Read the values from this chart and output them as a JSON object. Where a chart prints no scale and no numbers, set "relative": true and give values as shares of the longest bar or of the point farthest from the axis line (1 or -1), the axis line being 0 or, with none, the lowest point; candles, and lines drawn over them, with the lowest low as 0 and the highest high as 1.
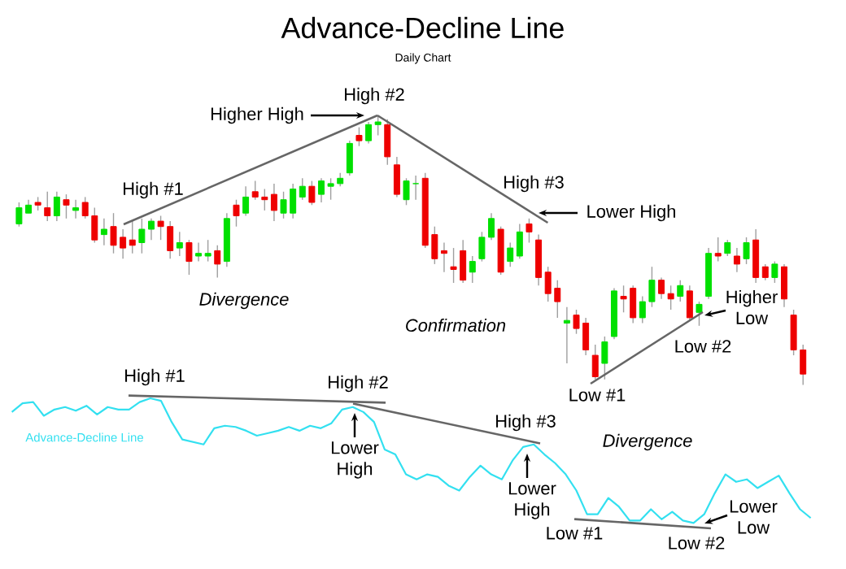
{
  "chart_data": [
    {
      "type": "candlestick",
      "title": "Advance-Decline Line",
      "subtitle": "Daily Chart",
      "relative": true,
      "categories": [
        null,
        null,
        null,
        null,
        null,
        null,
        null,
        null,
        null,
        null,
        null,
        null,
        null,
        null,
        null,
        null,
        null,
        null,
        null,
        null,
        null,
        null,
        null,
        null,
        null,
        null,
        null,
        null,
        null,
        null,
        null,
        null,
        null,
        null,
        null,
        null,
        null,
        null,
        null,
        null,
        null,
        null,
        null,
        null,
        null,
        null,
        null,
        null,
        null,
        null,
        null,
        null,
        null,
        null,
        null,
        null,
        null,
        null,
        null,
        null,
        null,
        null,
        null,
        null,
        null,
        null,
        null,
        null,
        null,
        null,
        null,
        null,
        null,
        null,
        null,
        null,
        null,
        null,
        null,
        null,
        null,
        null,
        null,
        null
      ],
      "ohlc": [
        [
          0.6,
          0.68,
          0.59,
          0.66
        ],
        [
          0.64,
          0.69,
          0.64,
          0.67
        ],
        [
          0.68,
          0.7,
          0.65,
          0.67
        ],
        [
          0.66,
          0.72,
          0.61,
          0.63
        ],
        [
          0.63,
          0.72,
          0.61,
          0.7
        ],
        [
          0.69,
          0.71,
          0.62,
          0.67
        ],
        [
          0.65,
          0.69,
          0.62,
          0.66
        ],
        [
          0.68,
          0.7,
          0.62,
          0.63
        ],
        [
          0.63,
          0.66,
          0.53,
          0.54
        ],
        [
          0.56,
          0.62,
          0.52,
          0.58
        ],
        [
          0.59,
          0.64,
          0.49,
          0.52
        ],
        [
          0.55,
          0.58,
          0.47,
          0.51
        ],
        [
          0.54,
          0.61,
          0.49,
          0.52
        ],
        [
          0.53,
          0.62,
          0.49,
          0.58
        ],
        [
          0.58,
          0.62,
          0.54,
          0.61
        ],
        [
          0.61,
          0.63,
          0.54,
          0.59
        ],
        [
          0.59,
          0.61,
          0.47,
          0.5
        ],
        [
          0.51,
          0.57,
          0.48,
          0.53
        ],
        [
          0.53,
          0.54,
          0.41,
          0.46
        ],
        [
          0.48,
          0.53,
          0.46,
          0.49
        ],
        [
          0.48,
          0.54,
          0.46,
          0.49
        ],
        [
          0.5,
          0.52,
          0.4,
          0.45
        ],
        [
          0.46,
          0.64,
          0.44,
          0.62
        ],
        [
          0.67,
          0.69,
          0.59,
          0.63
        ],
        [
          0.64,
          0.74,
          0.63,
          0.7
        ],
        [
          0.72,
          0.76,
          0.69,
          0.7
        ],
        [
          0.7,
          0.73,
          0.65,
          0.69
        ],
        [
          0.71,
          0.75,
          0.61,
          0.65
        ],
        [
          0.64,
          0.72,
          0.62,
          0.69
        ],
        [
          0.64,
          0.75,
          0.62,
          0.73
        ],
        [
          0.7,
          0.77,
          0.69,
          0.74
        ],
        [
          0.74,
          0.76,
          0.67,
          0.68
        ],
        [
          0.71,
          0.77,
          0.68,
          0.76
        ],
        [
          0.74,
          0.77,
          0.69,
          0.75
        ],
        [
          0.75,
          0.79,
          0.74,
          0.77
        ],
        [
          0.79,
          0.91,
          0.78,
          0.9
        ],
        [
          0.93,
          0.96,
          0.89,
          0.91
        ],
        [
          0.91,
          0.98,
          0.9,
          0.97
        ],
        [
          0.97,
          1.0,
          0.93,
          0.98
        ],
        [
          0.97,
          0.99,
          0.82,
          0.85
        ],
        [
          0.82,
          0.85,
          0.7,
          0.71
        ],
        [
          0.69,
          0.77,
          0.67,
          0.76
        ],
        [
          0.75,
          0.78,
          0.69,
          0.75
        ],
        [
          0.77,
          0.79,
          0.51,
          0.52
        ],
        [
          0.56,
          0.59,
          0.45,
          0.47
        ],
        [
          0.5,
          0.53,
          0.42,
          0.49
        ],
        [
          0.44,
          0.51,
          0.38,
          0.43
        ],
        [
          0.5,
          0.54,
          0.38,
          0.39
        ],
        [
          0.42,
          0.48,
          0.38,
          0.46
        ],
        [
          0.47,
          0.57,
          0.46,
          0.55
        ],
        [
          0.55,
          0.64,
          0.54,
          0.62
        ],
        [
          0.58,
          0.59,
          0.41,
          0.42
        ],
        [
          0.46,
          0.53,
          0.44,
          0.51
        ],
        [
          0.48,
          0.6,
          0.47,
          0.57
        ],
        [
          0.6,
          0.62,
          0.53,
          0.57
        ],
        [
          0.54,
          0.56,
          0.37,
          0.4
        ],
        [
          0.42,
          0.44,
          0.31,
          0.34
        ],
        [
          0.36,
          0.39,
          0.25,
          0.31
        ],
        [
          0.23,
          0.29,
          0.08,
          0.24
        ],
        [
          0.26,
          0.28,
          0.19,
          0.21
        ],
        [
          0.23,
          0.25,
          0.11,
          0.13
        ],
        [
          0.11,
          0.15,
          0.02,
          0.03
        ],
        [
          0.08,
          0.18,
          0.02,
          0.16
        ],
        [
          0.18,
          0.36,
          0.17,
          0.35
        ],
        [
          0.33,
          0.37,
          0.27,
          0.32
        ],
        [
          0.36,
          0.37,
          0.23,
          0.25
        ],
        [
          0.25,
          0.33,
          0.23,
          0.31
        ],
        [
          0.31,
          0.44,
          0.29,
          0.39
        ],
        [
          0.39,
          0.4,
          0.32,
          0.34
        ],
        [
          0.34,
          0.37,
          0.28,
          0.32
        ],
        [
          0.33,
          0.39,
          0.31,
          0.37
        ],
        [
          0.35,
          0.37,
          0.24,
          0.25
        ],
        [
          0.27,
          0.31,
          0.22,
          0.3
        ],
        [
          0.33,
          0.51,
          0.32,
          0.49
        ],
        [
          0.49,
          0.55,
          0.46,
          0.48
        ],
        [
          0.49,
          0.54,
          0.48,
          0.53
        ],
        [
          0.48,
          0.51,
          0.42,
          0.45
        ],
        [
          0.47,
          0.55,
          0.45,
          0.53
        ],
        [
          0.54,
          0.58,
          0.38,
          0.4
        ],
        [
          0.44,
          0.45,
          0.39,
          0.4
        ],
        [
          0.4,
          0.46,
          0.38,
          0.45
        ],
        [
          0.44,
          0.45,
          0.29,
          0.32
        ],
        [
          0.26,
          0.28,
          0.11,
          0.13
        ],
        [
          0.13,
          0.15,
          0.0,
          0.04
        ]
      ],
      "annotations": [
        "High #1",
        "Higher High",
        "High #2",
        "High #3",
        "Lower High",
        "Divergence",
        "Confirmation",
        "Higher Low",
        "Low #2",
        "Low #1"
      ]
    },
    {
      "type": "line",
      "relative": true,
      "categories": [
        null,
        null,
        null,
        null,
        null,
        null,
        null,
        null,
        null,
        null,
        null,
        null,
        null,
        null,
        null,
        null,
        null,
        null,
        null,
        null,
        null,
        null,
        null,
        null,
        null,
        null,
        null,
        null,
        null,
        null,
        null,
        null,
        null,
        null,
        null,
        null,
        null,
        null,
        null,
        null,
        null,
        null,
        null,
        null,
        null,
        null,
        null,
        null,
        null,
        null,
        null,
        null,
        null,
        null,
        null,
        null,
        null,
        null,
        null,
        null,
        null,
        null,
        null,
        null,
        null,
        null,
        null,
        null,
        null,
        null,
        null,
        null,
        null,
        null,
        null,
        null
      ],
      "series": [
        {
          "name": "Advance-Decline Line",
          "color": "#33e0f0",
          "values": [
            0.89,
            0.96,
            0.97,
            0.86,
            0.91,
            0.93,
            0.9,
            0.94,
            0.87,
            0.93,
            0.91,
            0.91,
            0.97,
            1.0,
            0.98,
            0.81,
            0.67,
            0.65,
            0.63,
            0.76,
            0.78,
            0.77,
            0.74,
            0.7,
            0.72,
            0.74,
            0.77,
            0.74,
            0.78,
            0.76,
            0.8,
            0.91,
            0.93,
            0.89,
            0.81,
            0.59,
            0.55,
            0.39,
            0.35,
            0.39,
            0.37,
            0.3,
            0.26,
            0.37,
            0.46,
            0.39,
            0.35,
            0.5,
            0.61,
            0.63,
            0.55,
            0.48,
            0.39,
            0.26,
            0.07,
            0.07,
            0.2,
            0.13,
            0.02,
            0.02,
            0.11,
            0.03,
            0.09,
            0.02,
            0.0,
            0.07,
            0.24,
            0.39,
            0.33,
            0.35,
            0.28,
            0.33,
            0.38,
            0.24,
            0.11,
            0.04
          ]
        }
      ],
      "annotations": [
        "High #1",
        "High #2",
        "Lower High",
        "High #3",
        "Lower High",
        "Divergence",
        "Low #1",
        "Low #2",
        "Lower Low"
      ]
    }
  ]
}
